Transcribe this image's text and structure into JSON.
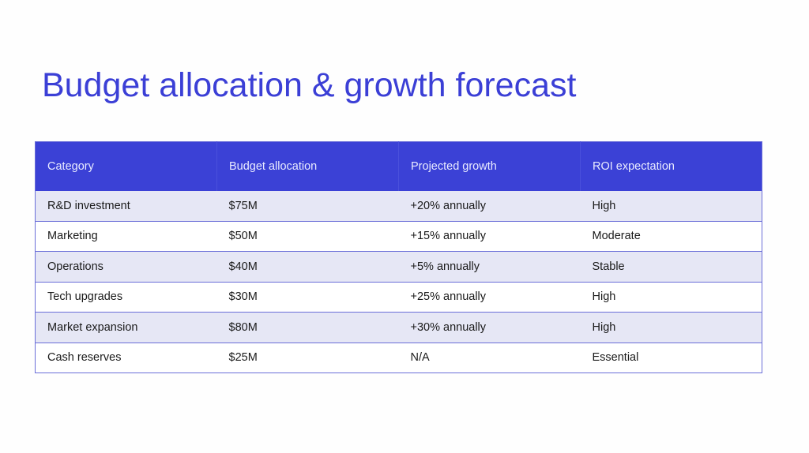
{
  "slide": {
    "title": "Budget allocation & growth forecast",
    "colors": {
      "title": "#3b3fd6",
      "header_bg": "#3b41d6",
      "header_text": "#e9ebff",
      "row_band": "#e6e7f5",
      "border": "#6a6ed8"
    },
    "table": {
      "headers": [
        "Category",
        "Budget allocation",
        "Projected growth",
        "ROI expectation"
      ],
      "rows": [
        [
          "R&D investment",
          "$75M",
          "+20% annually",
          "High"
        ],
        [
          "Marketing",
          "$50M",
          "+15% annually",
          "Moderate"
        ],
        [
          "Operations",
          "$40M",
          "+5% annually",
          "Stable"
        ],
        [
          "Tech upgrades",
          "$30M",
          "+25% annually",
          "High"
        ],
        [
          "Market expansion",
          "$80M",
          "+30% annually",
          "High"
        ],
        [
          "Cash reserves",
          "$25M",
          "N/A",
          "Essential"
        ]
      ]
    }
  }
}
